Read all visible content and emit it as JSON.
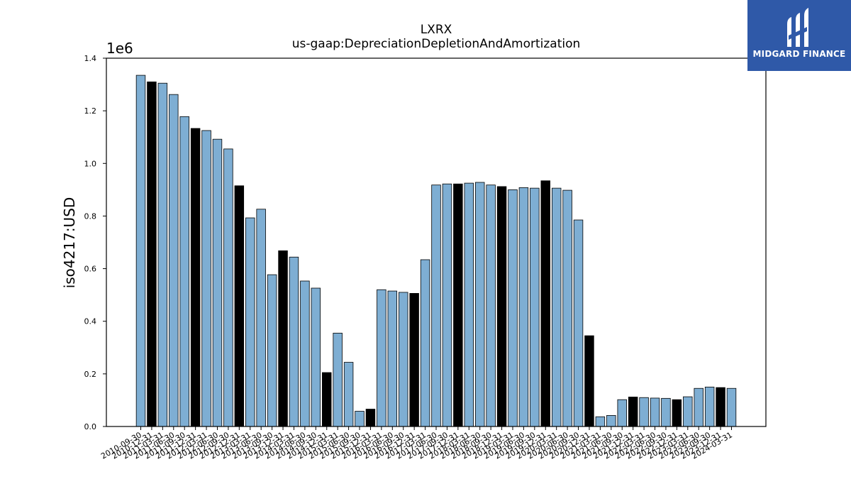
{
  "brand": {
    "name": "MIDGARD FINANCE"
  },
  "chart_data": {
    "type": "bar",
    "title": "LXRX",
    "subtitle": "us-gaap:DepreciationDepletionAndAmortization",
    "ylabel": "iso4217:USD",
    "xlabel": "",
    "y_scale_label": "1e6",
    "ylim": [
      0,
      1400000
    ],
    "yticks": [
      "0.0",
      "0.2",
      "0.4",
      "0.6",
      "0.8",
      "1.0",
      "1.2",
      "1.4"
    ],
    "grid": false,
    "colors": {
      "quarter": "#7eaed3",
      "annual": "#000000"
    },
    "categories": [
      "2010-09-30",
      "2010-12-31",
      "2011-03-31",
      "2011-06-30",
      "2011-09-30",
      "2011-12-31",
      "2012-03-31",
      "2012-06-30",
      "2012-09-30",
      "2012-12-31",
      "2013-03-31",
      "2013-06-30",
      "2013-09-30",
      "2013-12-31",
      "2014-03-31",
      "2014-06-30",
      "2014-09-30",
      "2014-12-31",
      "2015-03-31",
      "2015-06-30",
      "2015-09-30",
      "2015-12-31",
      "2016-03-31",
      "2016-06-30",
      "2016-09-30",
      "2016-12-31",
      "2017-03-31",
      "2017-06-30",
      "2017-09-30",
      "2017-12-31",
      "2018-03-31",
      "2018-06-30",
      "2018-09-30",
      "2018-12-31",
      "2019-03-31",
      "2019-06-30",
      "2019-09-30",
      "2019-12-31",
      "2020-03-31",
      "2020-06-30",
      "2020-09-30",
      "2020-12-31",
      "2021-03-31",
      "2021-06-30",
      "2021-09-30",
      "2021-12-31",
      "2022-03-31",
      "2022-06-30",
      "2022-09-30",
      "2022-12-31",
      "2023-03-31",
      "2023-06-30",
      "2023-09-30",
      "2023-12-31",
      "2024-03-31"
    ],
    "values": [
      1335000,
      1310000,
      1305000,
      1262000,
      1178000,
      1133000,
      1125000,
      1092000,
      1055000,
      915000,
      793000,
      826000,
      577000,
      668000,
      644000,
      553000,
      526000,
      205000,
      355000,
      244000,
      58000,
      66000,
      520000,
      515000,
      510000,
      506000,
      634000,
      918000,
      922000,
      922000,
      925000,
      928000,
      918000,
      912000,
      900000,
      908000,
      906000,
      934000,
      906000,
      898000,
      785000,
      345000,
      37000,
      42000,
      102000,
      112000,
      110000,
      108000,
      107000,
      102000,
      113000,
      145000,
      150000,
      148000,
      145000
    ],
    "annual": [
      false,
      true,
      false,
      false,
      false,
      true,
      false,
      false,
      false,
      true,
      false,
      false,
      false,
      true,
      false,
      false,
      false,
      true,
      false,
      false,
      false,
      true,
      false,
      false,
      false,
      true,
      false,
      false,
      false,
      true,
      false,
      false,
      false,
      true,
      false,
      false,
      false,
      true,
      false,
      false,
      false,
      true,
      false,
      false,
      false,
      true,
      false,
      false,
      false,
      true,
      false,
      false,
      false,
      true,
      false
    ]
  }
}
